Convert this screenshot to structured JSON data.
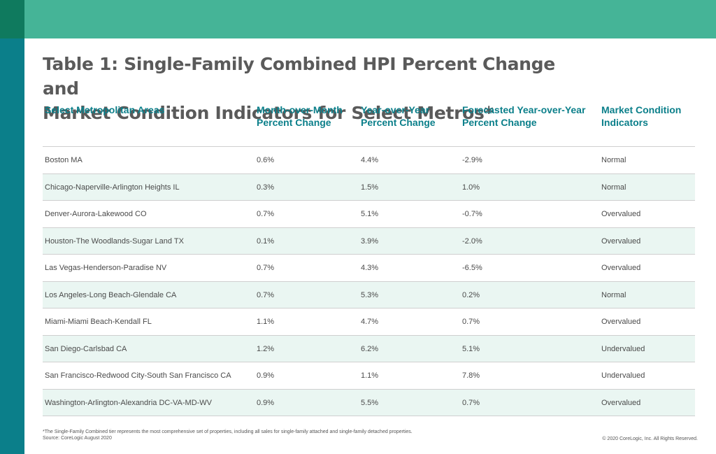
{
  "colors": {
    "top_band": "#45b497",
    "left_bar": "#0b7f8a",
    "corner": "#0f7a5e",
    "header_text": "#0b7f8a",
    "alt_row": "#eaf6f2"
  },
  "title": {
    "line1": "Table 1: Single-Family Combined HPI Percent Change and",
    "line2": "Market Condition Indicators for Select Metros*"
  },
  "table": {
    "headers": [
      {
        "line1": "Select Metropolitan Areas",
        "line2": ""
      },
      {
        "line1": "Month-over-Month",
        "line2": "Percent Change"
      },
      {
        "line1": "Year-over-Year",
        "line2": "Percent Change"
      },
      {
        "line1": "Forecasted Year-over-Year",
        "line2": "Percent Change"
      },
      {
        "line1": "Market Condition",
        "line2": "Indicators"
      }
    ],
    "rows": [
      {
        "area": "Boston MA",
        "mom": "0.6%",
        "yoy": "4.4%",
        "forecast": "-2.9%",
        "indicator": "Normal"
      },
      {
        "area": "Chicago-Naperville-Arlington Heights IL",
        "mom": "0.3%",
        "yoy": "1.5%",
        "forecast": "1.0%",
        "indicator": "Normal"
      },
      {
        "area": "Denver-Aurora-Lakewood CO",
        "mom": "0.7%",
        "yoy": "5.1%",
        "forecast": "-0.7%",
        "indicator": "Overvalued"
      },
      {
        "area": "Houston-The Woodlands-Sugar Land TX",
        "mom": "0.1%",
        "yoy": "3.9%",
        "forecast": "-2.0%",
        "indicator": "Overvalued"
      },
      {
        "area": "Las Vegas-Henderson-Paradise NV",
        "mom": "0.7%",
        "yoy": "4.3%",
        "forecast": "-6.5%",
        "indicator": "Overvalued"
      },
      {
        "area": "Los Angeles-Long Beach-Glendale CA",
        "mom": "0.7%",
        "yoy": "5.3%",
        "forecast": "0.2%",
        "indicator": "Normal"
      },
      {
        "area": "Miami-Miami Beach-Kendall FL",
        "mom": "1.1%",
        "yoy": "4.7%",
        "forecast": "0.7%",
        "indicator": "Overvalued"
      },
      {
        "area": "San Diego-Carlsbad CA",
        "mom": "1.2%",
        "yoy": "6.2%",
        "forecast": "5.1%",
        "indicator": "Undervalued"
      },
      {
        "area": "San Francisco-Redwood City-South San Francisco CA",
        "mom": "0.9%",
        "yoy": "1.1%",
        "forecast": "7.8%",
        "indicator": "Undervalued"
      },
      {
        "area": "Washington-Arlington-Alexandria DC-VA-MD-WV",
        "mom": "0.9%",
        "yoy": "5.5%",
        "forecast": "0.7%",
        "indicator": "Overvalued"
      }
    ]
  },
  "footnote": {
    "line1": "*The Single-Family Combined tier represents the most comprehensive set of properties, including all sales for single-family attached and single-family detached properties.",
    "line2": "Source: CoreLogic August 2020"
  },
  "copyright": "© 2020 CoreLogic, Inc. All Rights Reserved."
}
